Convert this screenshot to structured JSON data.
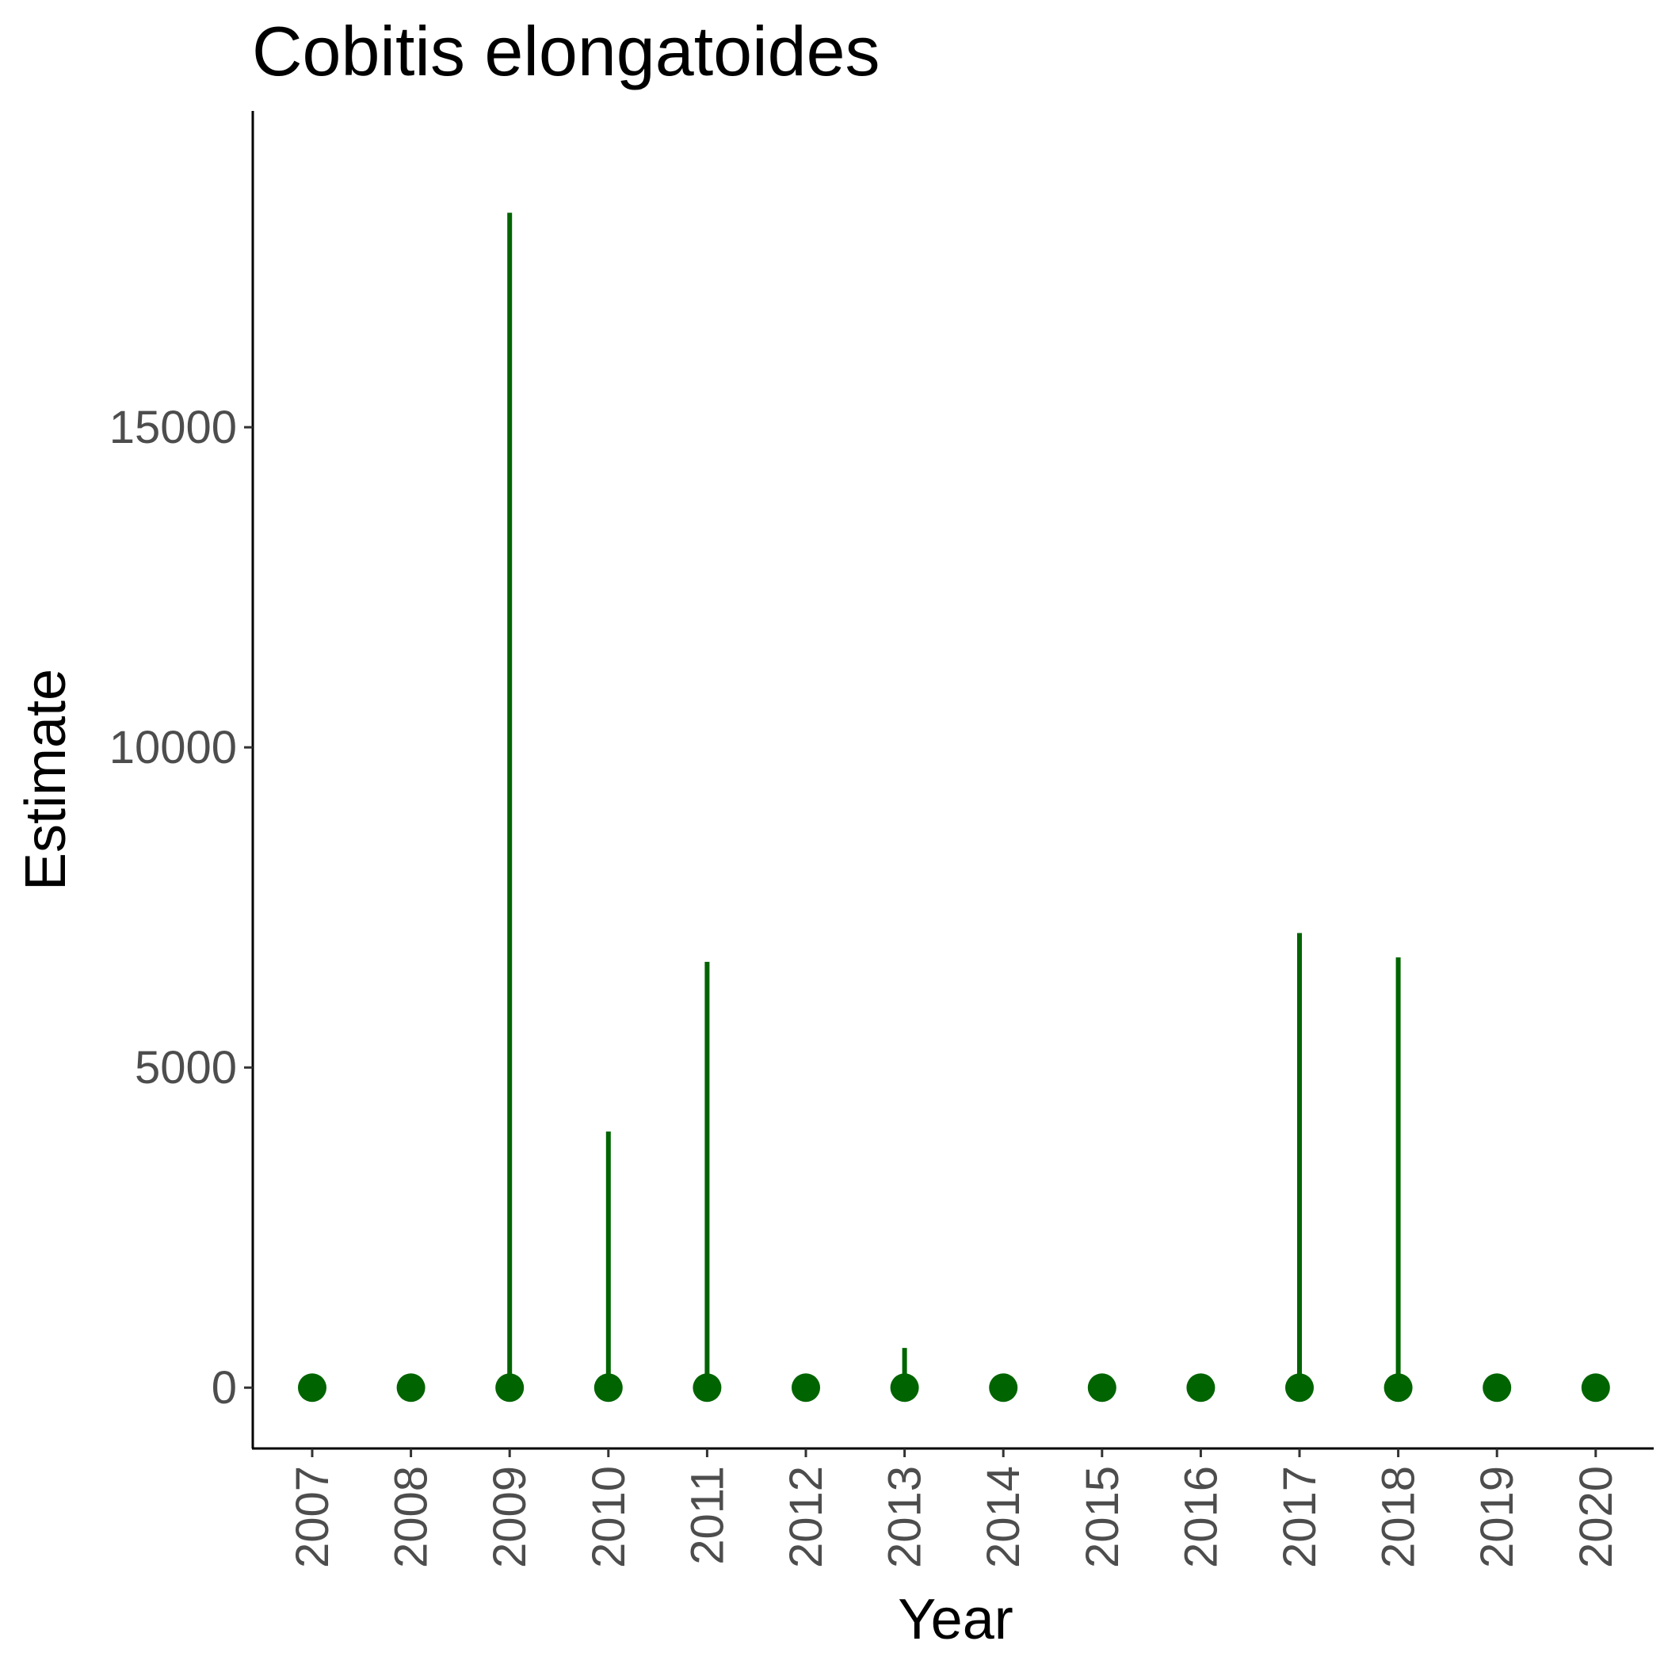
{
  "chart_data": {
    "type": "scatter",
    "title": "Cobitis elongatoides",
    "xlabel": "Year",
    "ylabel": "Estimate",
    "x": [
      "2007",
      "2008",
      "2009",
      "2010",
      "2011",
      "2012",
      "2013",
      "2014",
      "2015",
      "2016",
      "2017",
      "2018",
      "2019",
      "2020"
    ],
    "values": [
      0,
      0,
      0,
      0,
      0,
      0,
      0,
      0,
      0,
      0,
      0,
      0,
      0,
      0
    ],
    "upper": [
      0,
      0,
      18350,
      4000,
      6650,
      0,
      620,
      0,
      0,
      0,
      7100,
      6720,
      0,
      0
    ],
    "ylim": [
      -950,
      19940
    ],
    "yticks": [
      0,
      5000,
      10000,
      15000
    ],
    "color": "#006400",
    "grid": false,
    "legend": "none"
  }
}
